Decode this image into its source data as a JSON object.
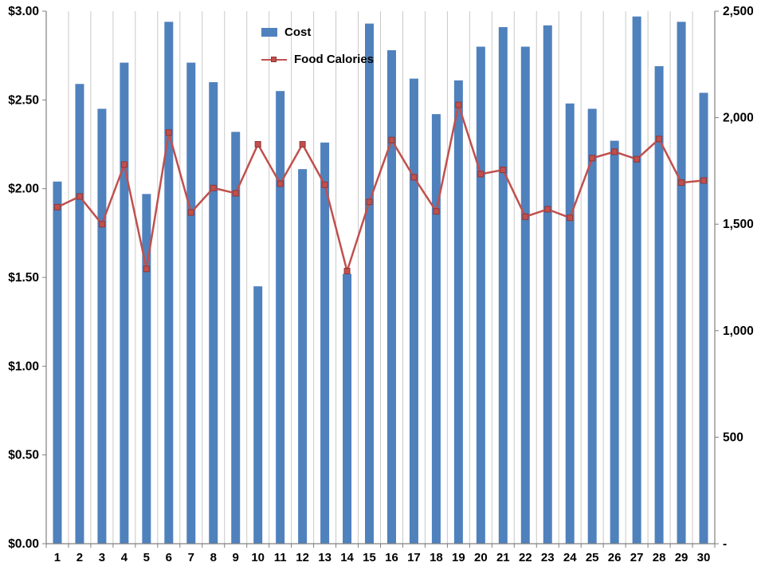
{
  "page": {
    "background": "#FFFFFF"
  },
  "chart_data": {
    "type": "bar",
    "title": "",
    "categories": [
      "1",
      "2",
      "3",
      "4",
      "5",
      "6",
      "7",
      "8",
      "9",
      "10",
      "11",
      "12",
      "13",
      "14",
      "15",
      "16",
      "17",
      "18",
      "19",
      "20",
      "21",
      "22",
      "23",
      "24",
      "25",
      "26",
      "27",
      "28",
      "29",
      "30"
    ],
    "series": [
      {
        "name": "Cost",
        "render": "bar",
        "axis": "left",
        "color": "#4F81BD",
        "values": [
          2.04,
          2.59,
          2.45,
          2.71,
          1.97,
          2.94,
          2.71,
          2.6,
          2.32,
          1.45,
          2.55,
          2.11,
          2.26,
          1.52,
          2.93,
          2.78,
          2.62,
          2.42,
          2.61,
          2.8,
          2.91,
          2.8,
          2.92,
          2.48,
          2.45,
          2.27,
          2.97,
          2.69,
          2.94,
          2.54
        ]
      },
      {
        "name": "Food Calories",
        "render": "line",
        "axis": "right",
        "color": "#C0504D",
        "marker": "square",
        "marker_border": "#943634",
        "values": [
          1580,
          1630,
          1500,
          1780,
          1290,
          1930,
          1555,
          1670,
          1645,
          1875,
          1690,
          1875,
          1685,
          1280,
          1605,
          1895,
          1720,
          1560,
          2060,
          1735,
          1755,
          1535,
          1570,
          1530,
          1810,
          1840,
          1805,
          1900,
          1695,
          1705
        ]
      }
    ],
    "left_axis": {
      "min": 0,
      "max": 3,
      "step": 0.5,
      "labels": [
        "$0.00",
        "$0.50",
        "$1.00",
        "$1.50",
        "$2.00",
        "$2.50",
        "$3.00"
      ]
    },
    "right_axis": {
      "min": 0,
      "max": 2500,
      "step": 500,
      "labels": [
        "-",
        "500",
        "1,000",
        "1,500",
        "2,000",
        "2,500"
      ]
    },
    "grid": {
      "vertical": true,
      "horizontal": false,
      "color": "#C9C9C9"
    },
    "axis_color": "#808080",
    "text_color": "#000000",
    "legend": {
      "position": "top-center",
      "entries": [
        "Cost",
        "Food Calories"
      ]
    }
  }
}
